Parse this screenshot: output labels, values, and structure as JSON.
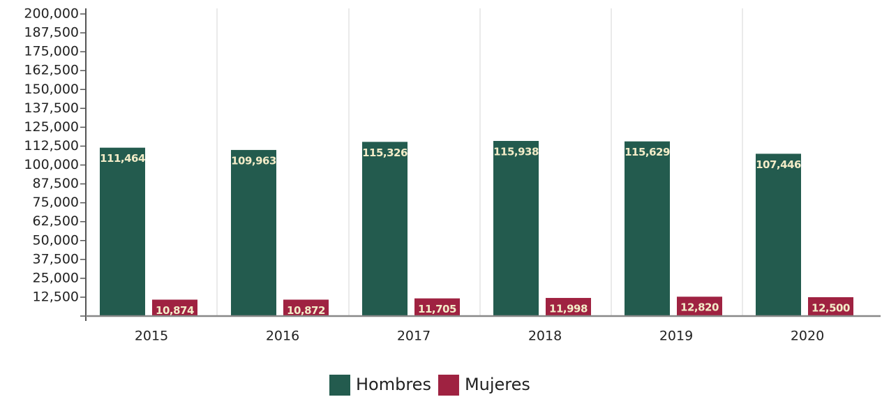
{
  "chart_data": {
    "type": "bar",
    "categories": [
      "2015",
      "2016",
      "2017",
      "2018",
      "2019",
      "2020"
    ],
    "series": [
      {
        "name": "Hombres",
        "color": "#235b4e",
        "values": [
          111464,
          109963,
          115326,
          115938,
          115629,
          107446
        ],
        "value_labels": [
          "111,464",
          "109,963",
          "115,326",
          "115,938",
          "115,629",
          "107,446"
        ]
      },
      {
        "name": "Mujeres",
        "color": "#9f2241",
        "values": [
          10874,
          10872,
          11705,
          11998,
          12820,
          12500
        ],
        "value_labels": [
          "10,874",
          "10,872",
          "11,705",
          "11,998",
          "12,820",
          "12,500"
        ]
      }
    ],
    "ylim": [
      0,
      200000
    ],
    "yticks": [
      {
        "value": 12500,
        "label": "12,500"
      },
      {
        "value": 25000,
        "label": "25,000"
      },
      {
        "value": 37500,
        "label": "37,500"
      },
      {
        "value": 50000,
        "label": "50,000"
      },
      {
        "value": 62500,
        "label": "62,500"
      },
      {
        "value": 75000,
        "label": "75,000"
      },
      {
        "value": 87500,
        "label": "87,500"
      },
      {
        "value": 100000,
        "label": "100,000"
      },
      {
        "value": 112500,
        "label": "112,500"
      },
      {
        "value": 125000,
        "label": "125,000"
      },
      {
        "value": 137500,
        "label": "137,500"
      },
      {
        "value": 150000,
        "label": "150,000"
      },
      {
        "value": 162500,
        "label": "162,500"
      },
      {
        "value": 175000,
        "label": "175,000"
      },
      {
        "value": 187500,
        "label": "187,500"
      },
      {
        "value": 200000,
        "label": "200,000"
      }
    ],
    "legend": "bottom"
  }
}
